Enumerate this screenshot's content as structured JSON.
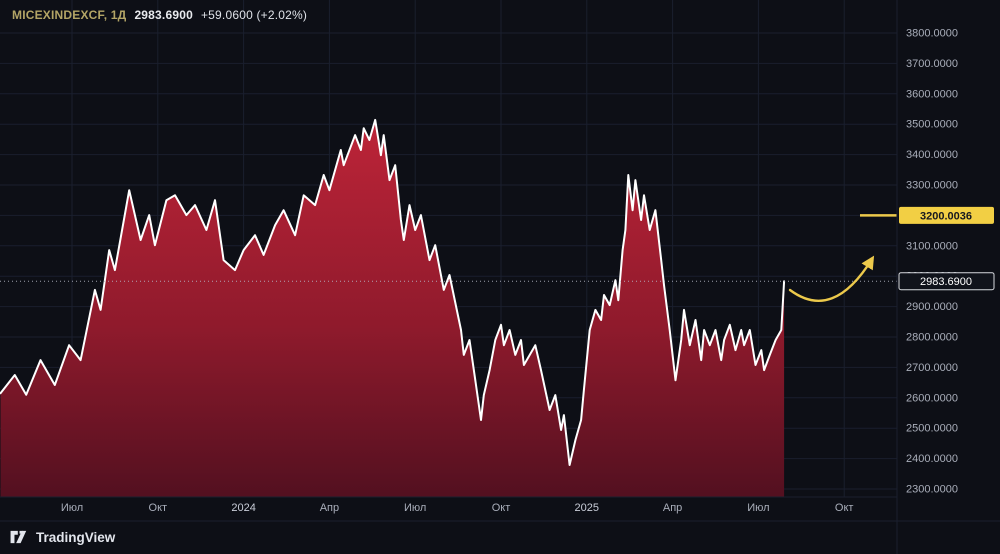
{
  "header": {
    "symbol": "MICEXINDEXCF, 1Д",
    "price": "2983.6900",
    "change": "+59.0600 (+2.02%)"
  },
  "footer": {
    "brand": "TradingView"
  },
  "badges": {
    "last_price": "2983.6900",
    "level": "3200.0036"
  },
  "axis": {
    "y_ticks": [
      "3800.0000",
      "3700.0000",
      "3600.0000",
      "3500.0000",
      "3400.0000",
      "3300.0000",
      "3200.0000",
      "3100.0000",
      "3000.0000",
      "2900.0000",
      "2800.0000",
      "2700.0000",
      "2600.0000",
      "2500.0000",
      "2400.0000",
      "2300.0000"
    ],
    "x_ticks": [
      {
        "label": "Июл",
        "m": 0,
        "major": false
      },
      {
        "label": "Окт",
        "m": 3,
        "major": false
      },
      {
        "label": "2024",
        "m": 6,
        "major": true
      },
      {
        "label": "Апр",
        "m": 9,
        "major": false
      },
      {
        "label": "Июл",
        "m": 12,
        "major": false
      },
      {
        "label": "Окт",
        "m": 15,
        "major": false
      },
      {
        "label": "2025",
        "m": 18,
        "major": true
      },
      {
        "label": "Апр",
        "m": 21,
        "major": false
      },
      {
        "label": "Июл",
        "m": 24,
        "major": false
      },
      {
        "label": "Окт",
        "m": 27,
        "major": false
      }
    ]
  },
  "colors": {
    "background": "#0d0f16",
    "grid": "#1a1f2e",
    "area_top": "#bd2438",
    "area_mid": "#8f1a2c",
    "area_bottom": "#531020",
    "line": "#ffffff",
    "axis_text": "#a9aeba",
    "year_text": "#c9cdd8",
    "dotted_line": "#b8bcc9",
    "accent_yellow": "#ecc94b",
    "badge_level_bg": "#f2cf44",
    "badge_level_text": "#16181f",
    "badge_last_bg": "#10131b",
    "badge_last_border": "#d6d9de",
    "badge_last_text": "#ffffff"
  },
  "chart_data": {
    "type": "area",
    "title": "MICEXINDEXCF, 1Д (MOEX index, daily)",
    "x_unit": "months since 2023-07",
    "xlabel": "",
    "ylabel": "",
    "y_range": [
      2300,
      3800
    ],
    "grid": true,
    "legend_position": "none",
    "last_price": 2983.69,
    "level_line": 3200.0036,
    "points": [
      [
        -2.5,
        2615
      ],
      [
        -2.0,
        2675
      ],
      [
        -1.6,
        2610
      ],
      [
        -1.1,
        2724
      ],
      [
        -0.6,
        2642
      ],
      [
        -0.1,
        2773
      ],
      [
        0.3,
        2724
      ],
      [
        0.8,
        2955
      ],
      [
        1.0,
        2889
      ],
      [
        1.3,
        3086
      ],
      [
        1.5,
        3020
      ],
      [
        2.0,
        3283
      ],
      [
        2.4,
        3119
      ],
      [
        2.7,
        3201
      ],
      [
        2.9,
        3102
      ],
      [
        3.3,
        3250
      ],
      [
        3.6,
        3266
      ],
      [
        4.0,
        3201
      ],
      [
        4.3,
        3234
      ],
      [
        4.7,
        3152
      ],
      [
        5.0,
        3250
      ],
      [
        5.3,
        3053
      ],
      [
        5.7,
        3020
      ],
      [
        6.0,
        3086
      ],
      [
        6.4,
        3135
      ],
      [
        6.7,
        3070
      ],
      [
        7.1,
        3168
      ],
      [
        7.4,
        3217
      ],
      [
        7.8,
        3135
      ],
      [
        8.1,
        3266
      ],
      [
        8.5,
        3234
      ],
      [
        8.8,
        3333
      ],
      [
        9.0,
        3283
      ],
      [
        9.4,
        3415
      ],
      [
        9.5,
        3365
      ],
      [
        9.9,
        3464
      ],
      [
        10.1,
        3415
      ],
      [
        10.2,
        3487
      ],
      [
        10.4,
        3448
      ],
      [
        10.6,
        3514
      ],
      [
        10.8,
        3398
      ],
      [
        10.9,
        3464
      ],
      [
        11.1,
        3316
      ],
      [
        11.3,
        3365
      ],
      [
        11.5,
        3185
      ],
      [
        11.6,
        3119
      ],
      [
        11.8,
        3234
      ],
      [
        12.0,
        3152
      ],
      [
        12.2,
        3201
      ],
      [
        12.5,
        3053
      ],
      [
        12.7,
        3102
      ],
      [
        13.0,
        2955
      ],
      [
        13.2,
        3004
      ],
      [
        13.6,
        2823
      ],
      [
        13.7,
        2741
      ],
      [
        13.9,
        2790
      ],
      [
        14.1,
        2658
      ],
      [
        14.3,
        2527
      ],
      [
        14.4,
        2609
      ],
      [
        14.6,
        2691
      ],
      [
        14.8,
        2790
      ],
      [
        15.0,
        2840
      ],
      [
        15.1,
        2773
      ],
      [
        15.3,
        2823
      ],
      [
        15.5,
        2741
      ],
      [
        15.7,
        2790
      ],
      [
        15.8,
        2708
      ],
      [
        16.2,
        2773
      ],
      [
        16.4,
        2691
      ],
      [
        16.7,
        2560
      ],
      [
        16.9,
        2609
      ],
      [
        17.1,
        2494
      ],
      [
        17.2,
        2543
      ],
      [
        17.4,
        2379
      ],
      [
        17.6,
        2461
      ],
      [
        17.8,
        2527
      ],
      [
        17.9,
        2626
      ],
      [
        18.1,
        2823
      ],
      [
        18.3,
        2889
      ],
      [
        18.5,
        2856
      ],
      [
        18.6,
        2938
      ],
      [
        18.8,
        2905
      ],
      [
        19.0,
        2987
      ],
      [
        19.1,
        2921
      ],
      [
        19.25,
        3086
      ],
      [
        19.35,
        3152
      ],
      [
        19.45,
        3333
      ],
      [
        19.6,
        3217
      ],
      [
        19.7,
        3316
      ],
      [
        19.9,
        3185
      ],
      [
        20.0,
        3266
      ],
      [
        20.2,
        3152
      ],
      [
        20.4,
        3217
      ],
      [
        20.6,
        3053
      ],
      [
        20.7,
        2971
      ],
      [
        20.9,
        2823
      ],
      [
        21.1,
        2658
      ],
      [
        21.3,
        2790
      ],
      [
        21.4,
        2889
      ],
      [
        21.6,
        2773
      ],
      [
        21.8,
        2856
      ],
      [
        22.0,
        2724
      ],
      [
        22.1,
        2823
      ],
      [
        22.3,
        2773
      ],
      [
        22.5,
        2823
      ],
      [
        22.7,
        2724
      ],
      [
        22.8,
        2790
      ],
      [
        23.0,
        2840
      ],
      [
        23.2,
        2757
      ],
      [
        23.4,
        2823
      ],
      [
        23.5,
        2773
      ],
      [
        23.7,
        2823
      ],
      [
        23.9,
        2708
      ],
      [
        24.1,
        2757
      ],
      [
        24.2,
        2691
      ],
      [
        24.4,
        2741
      ],
      [
        24.6,
        2790
      ],
      [
        24.8,
        2823
      ],
      [
        24.9,
        2983.69
      ]
    ],
    "annotation": {
      "type": "curved-arrow",
      "direction": "up-right",
      "color": "#ecc94b"
    }
  }
}
